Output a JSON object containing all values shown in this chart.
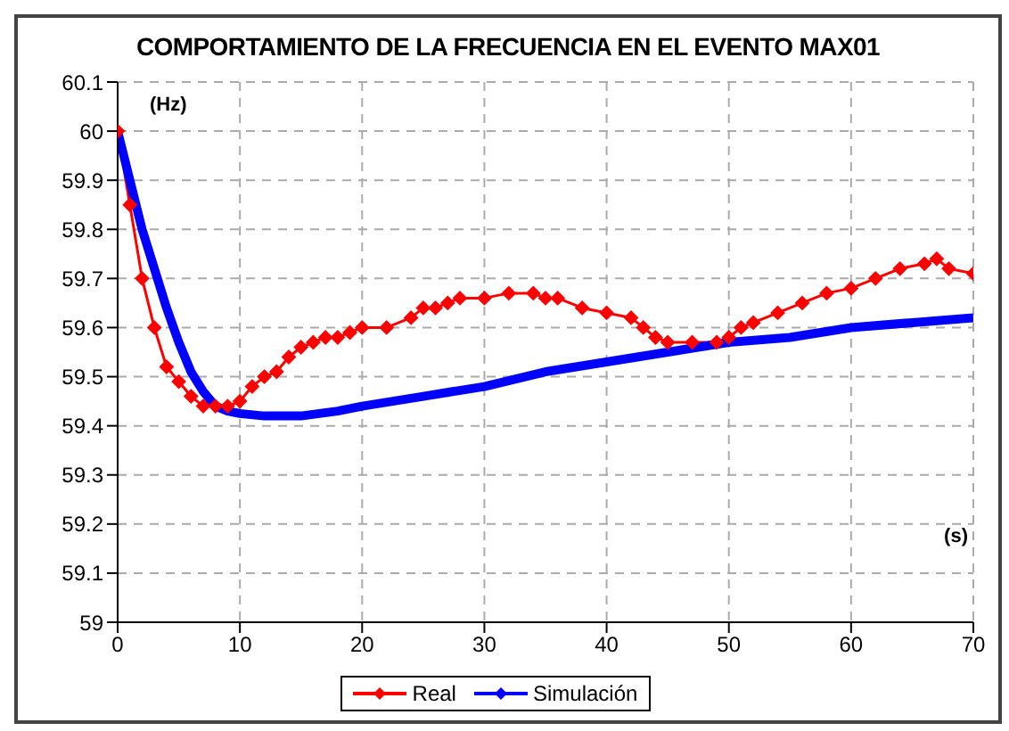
{
  "chart_data": {
    "type": "line",
    "title": "COMPORTAMIENTO DE LA FRECUENCIA EN EL EVENTO MAX01",
    "xlabel": "(s)",
    "ylabel": "(Hz)",
    "xlim": [
      0,
      70
    ],
    "xticks": [
      0,
      10,
      20,
      30,
      40,
      50,
      60,
      70
    ],
    "ylim": [
      59,
      60.1
    ],
    "yticks": [
      59,
      59.1,
      59.2,
      59.3,
      59.4,
      59.5,
      59.6,
      59.7,
      59.8,
      59.9,
      60,
      60.1
    ],
    "grid": true,
    "legend": "bottom",
    "line_style": "solid",
    "series": [
      {
        "name": "Real",
        "color": "#ff0000",
        "marker": "diamond",
        "x": [
          0,
          1,
          2,
          3,
          4,
          5,
          6,
          7,
          8,
          9,
          10,
          11,
          12,
          13,
          14,
          15,
          16,
          17,
          18,
          19,
          20,
          22,
          24,
          25,
          26,
          27,
          28,
          30,
          32,
          34,
          35,
          36,
          38,
          40,
          42,
          43,
          44,
          45,
          47,
          49,
          50,
          51,
          52,
          54,
          56,
          58,
          60,
          62,
          64,
          66,
          67,
          68,
          70
        ],
        "values": [
          60.0,
          59.85,
          59.7,
          59.6,
          59.52,
          59.49,
          59.46,
          59.44,
          59.44,
          59.44,
          59.45,
          59.48,
          59.5,
          59.51,
          59.54,
          59.56,
          59.57,
          59.58,
          59.58,
          59.59,
          59.6,
          59.6,
          59.62,
          59.64,
          59.64,
          59.65,
          59.66,
          59.66,
          59.67,
          59.67,
          59.66,
          59.66,
          59.64,
          59.63,
          59.62,
          59.6,
          59.58,
          59.57,
          59.57,
          59.57,
          59.58,
          59.6,
          59.61,
          59.63,
          59.65,
          59.67,
          59.68,
          59.7,
          59.72,
          59.73,
          59.74,
          59.72,
          59.71
        ]
      },
      {
        "name": "Simulación",
        "color": "#0000ff",
        "marker": "none",
        "x": [
          0,
          1,
          2,
          3,
          4,
          5,
          6,
          7,
          8,
          9,
          10,
          12,
          15,
          18,
          20,
          25,
          30,
          35,
          40,
          45,
          50,
          55,
          60,
          65,
          70
        ],
        "values": [
          60.0,
          59.9,
          59.8,
          59.72,
          59.64,
          59.57,
          59.51,
          59.47,
          59.44,
          59.43,
          59.425,
          59.42,
          59.42,
          59.43,
          59.44,
          59.46,
          59.48,
          59.51,
          59.53,
          59.55,
          59.57,
          59.58,
          59.6,
          59.61,
          59.62
        ]
      }
    ]
  }
}
